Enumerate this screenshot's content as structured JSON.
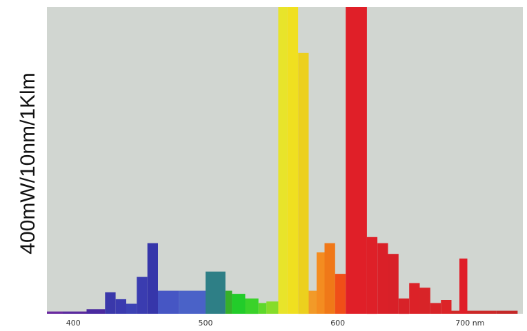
{
  "chart_data": {
    "type": "bar",
    "title": "",
    "xlabel": "",
    "ylabel": "400mW/10nm/1Klm",
    "xlim": [
      380,
      740
    ],
    "ylim": [
      0,
      400
    ],
    "grid": false,
    "legend": "none",
    "background_color": "#d1d6d1",
    "x_tick_labels": [
      {
        "x": 400,
        "label": "400"
      },
      {
        "x": 500,
        "label": "500"
      },
      {
        "x": 600,
        "label": "600"
      },
      {
        "x": 700,
        "label": "700 nm"
      }
    ],
    "bars": [
      {
        "x0": 380,
        "x1": 392,
        "value": 3,
        "color": "#6a2aa0"
      },
      {
        "x0": 392,
        "x1": 410,
        "value": 3,
        "color": "#5a2a9e"
      },
      {
        "x0": 410,
        "x1": 424,
        "value": 6,
        "color": "#4a2aa0"
      },
      {
        "x0": 424,
        "x1": 432,
        "value": 28,
        "color": "#3a38aa"
      },
      {
        "x0": 432,
        "x1": 440,
        "value": 19,
        "color": "#3a3aaf"
      },
      {
        "x0": 440,
        "x1": 448,
        "value": 13,
        "color": "#3c42b4"
      },
      {
        "x0": 448,
        "x1": 456,
        "value": 48,
        "color": "#3a3cb0"
      },
      {
        "x0": 456,
        "x1": 464,
        "value": 92,
        "color": "#3636aa"
      },
      {
        "x0": 464,
        "x1": 480,
        "value": 30,
        "color": "#4656c4"
      },
      {
        "x0": 480,
        "x1": 500,
        "value": 30,
        "color": "#4a62c8"
      },
      {
        "x0": 500,
        "x1": 515,
        "value": 55,
        "color": "#2e7f86"
      },
      {
        "x0": 515,
        "x1": 520,
        "value": 30,
        "color": "#36b02a"
      },
      {
        "x0": 520,
        "x1": 530,
        "value": 26,
        "color": "#22cc2a"
      },
      {
        "x0": 530,
        "x1": 540,
        "value": 20,
        "color": "#3ad22a"
      },
      {
        "x0": 540,
        "x1": 546,
        "value": 14,
        "color": "#5ed82a"
      },
      {
        "x0": 546,
        "x1": 555,
        "value": 16,
        "color": "#86dc2a"
      },
      {
        "x0": 555,
        "x1": 562,
        "value": 400,
        "color": "#e8e42a"
      },
      {
        "x0": 562,
        "x1": 570,
        "value": 400,
        "color": "#f0e020"
      },
      {
        "x0": 570,
        "x1": 578,
        "value": 340,
        "color": "#ecd01e"
      },
      {
        "x0": 578,
        "x1": 584,
        "value": 30,
        "color": "#f29a28"
      },
      {
        "x0": 584,
        "x1": 590,
        "value": 80,
        "color": "#f48c20"
      },
      {
        "x0": 590,
        "x1": 598,
        "value": 92,
        "color": "#f07818"
      },
      {
        "x0": 598,
        "x1": 606,
        "value": 52,
        "color": "#f04e18"
      },
      {
        "x0": 606,
        "x1": 622,
        "value": 400,
        "color": "#e01f28"
      },
      {
        "x0": 622,
        "x1": 630,
        "value": 100,
        "color": "#de2028"
      },
      {
        "x0": 630,
        "x1": 638,
        "value": 92,
        "color": "#da2028"
      },
      {
        "x0": 638,
        "x1": 646,
        "value": 78,
        "color": "#d82028"
      },
      {
        "x0": 646,
        "x1": 654,
        "value": 20,
        "color": "#d82228"
      },
      {
        "x0": 654,
        "x1": 662,
        "value": 40,
        "color": "#dc2228"
      },
      {
        "x0": 662,
        "x1": 670,
        "value": 34,
        "color": "#d82428"
      },
      {
        "x0": 670,
        "x1": 678,
        "value": 14,
        "color": "#d82428"
      },
      {
        "x0": 678,
        "x1": 686,
        "value": 18,
        "color": "#dc2428"
      },
      {
        "x0": 686,
        "x1": 692,
        "value": 4,
        "color": "#d02828"
      },
      {
        "x0": 692,
        "x1": 698,
        "value": 72,
        "color": "#e01e28"
      },
      {
        "x0": 698,
        "x1": 720,
        "value": 4,
        "color": "#cc2828"
      },
      {
        "x0": 720,
        "x1": 736,
        "value": 4,
        "color": "#c42828"
      }
    ]
  }
}
